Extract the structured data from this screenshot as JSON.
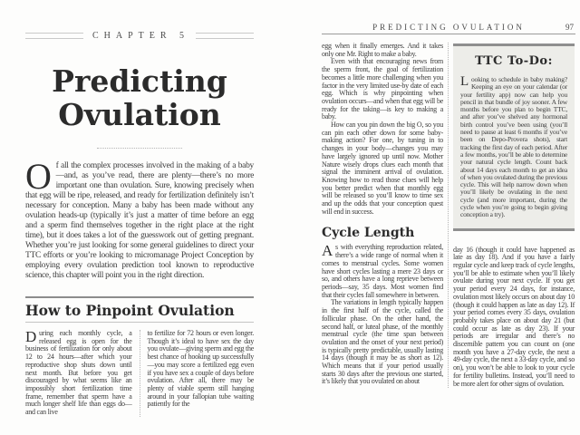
{
  "left_page": {
    "chapter_label": "CHAPTER 5",
    "title_line1": "Predicting",
    "title_line2": "Ovulation",
    "intro": {
      "dropcap": "O",
      "text": "f all the complex processes involved in the making of a baby—and, as you’ve read, there are plenty—there’s no more important one than ovulation. Sure, knowing precisely when that egg will be ripe, released, and ready for fertilization definitely isn’t necessary for conception. Many a baby has been made without any ovulation heads-up (typically it’s just a matter of time before an egg and a sperm find themselves together in the right place at the right time), but it does takes a lot of the guesswork out of getting pregnant. Whether you’re just looking for some general guidelines to direct your TTC efforts or you’re looking to micromanage Project Conception by employing every ovulation prediction tool known to reproductive science, this chapter will point you in the right direction."
    },
    "section": {
      "heading": "How to Pinpoint Ovulation",
      "col1": {
        "dropcap": "D",
        "text": "uring each monthly cycle, a released egg is open for the business of fertilization for only about 12 to 24 hours—after which your reproductive shop shuts down until next month. But before you get discouraged by what seems like an impossibly short fertilization time frame, remember that sperm have a much longer shelf life than eggs do—and can live"
      },
      "col2": {
        "text": "to fertilize for 72 hours or even longer. Though it’s ideal to have sex the day you ovulate—giving sperm and egg the best chance of hooking up successfully—you may score a fertilized egg even if you have sex a couple of days before ovulation. After all, there may be plenty of viable sperm still hanging around in your fallopian tube waiting patiently for the"
      }
    }
  },
  "right_page": {
    "header": {
      "title": "PREDICTING OVULATION",
      "page_number": "97"
    },
    "col1": {
      "p1": "egg when it finally emerges. And it takes only one Mr. Right to make a baby.",
      "p2": "Even with that encouraging news from the sperm front, the goal of fertilization becomes a little more challenging when you factor in the very limited use-by date of each egg. Which is why pinpointing when ovulation occurs—and when that egg will be ready for the taking—is key to making a baby.",
      "p3": "How can you pin down the big O, so you can pin each other down for some baby-making action? For one, by tuning in to changes in your body—changes you may have largely ignored up until now. Mother Nature wisely drops clues each month that signal the imminent arrival of ovulation. Knowing how to read those clues will help you better predict when that monthly egg will be released so you’ll know to time sex and up the odds that your conception quest will end in success.",
      "heading": "Cycle Length",
      "p4": {
        "dropcap": "A",
        "text": "s with everything reproduction related, there’s a wide range of normal when it comes to menstrual cycles. Some women have short cycles lasting a mere 23 days or so, and others have a long reprieve between periods—say, 35 days. Most women find that their cycles fall somewhere in between."
      },
      "p5": "The variations in length typically happen in the first half of the cycle, called the follicular phase. On the other hand, the second half, or luteal phase, of the monthly menstrual cycle (the time span between ovulation and the onset of your next period) is typically pretty predictable, usually lasting 14 days (though it may be as short as 12). Which means that if your period usually starts 30 days after the previous one started, it’s likely that you ovulated on about"
    },
    "sidebar": {
      "title": "TTC To-Do:",
      "dropcap": "L",
      "body": "ooking to schedule in baby making? Keeping an eye on your calendar (or your fertility app) now can help you pencil in that bundle of joy sooner. A few months before you plan to begin TTC, and after you’ve shelved any hormonal birth control you’ve been using (you’ll need to pause at least 6 months if you’ve been on Depo-Provera shots), start tracking the first day of each period. After a few months, you’ll be able to determine your natural cycle length. Count back about 14 days each month to get an idea of when you ovulated during the previous cycle. This will help narrow down when you’ll likely be ovulating in the next cycle (and more important, during the cycle when you’re going to begin giving conception a try)."
    },
    "col2": {
      "p1": "day 16 (though it could have happened as late as day 18). And if you have a fairly regular cycle and keep track of cycle lengths, you’ll be able to estimate when you’ll likely ovulate during your next cycle. If you get your period every 24 days, for instance, ovulation most likely occurs on about day 10 (though it could happen as late as day 12). If your period comes every 35 days, ovulation probably takes place on about day 21 (but could occur as late as day 23). If your periods are irregular and there’s no discernible pattern you can count on (one month you have a 27-day cycle, the next a 49-day cycle, the next a 33-day cycle, and so on), you won’t be able to look to your cycle for fertility bulletins. Instead, you’ll need to be more alert for other signs of ovulation."
    }
  },
  "colors": {
    "page_background": "#fdfdfc",
    "body_text": "#3b3b3b",
    "heading_text": "#2b2b2b",
    "sidebar_background": "#edede9",
    "sidebar_bar": "#8f8f8f",
    "header_rule": "#9a9a9a",
    "dotted_rule": "#b5b5b5"
  }
}
